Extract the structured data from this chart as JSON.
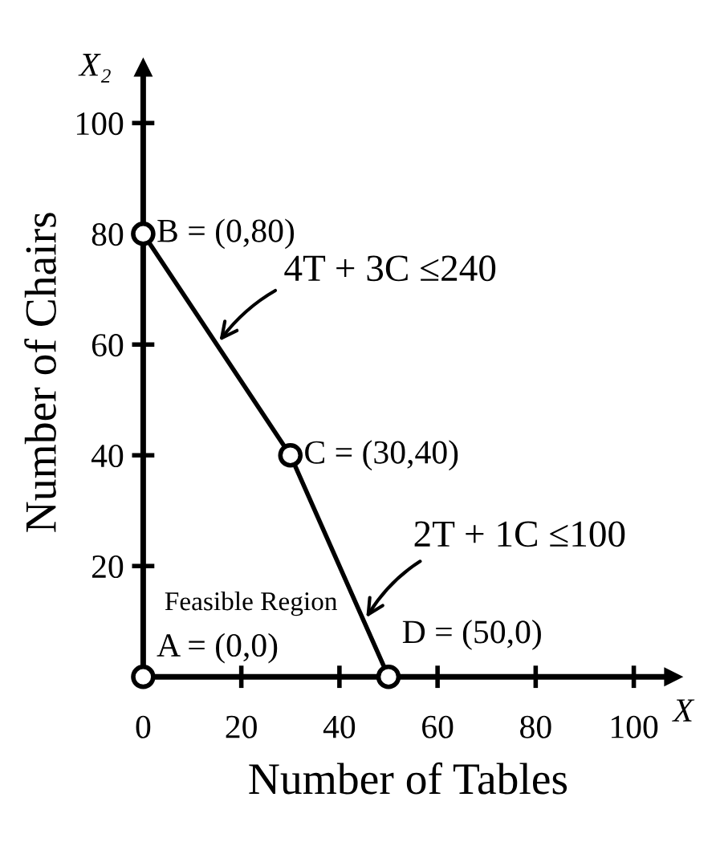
{
  "chart_data": {
    "type": "line",
    "xlabel": "Number of Tables",
    "ylabel": "Number of Chairs",
    "xlim": [
      0,
      108
    ],
    "ylim": [
      0,
      110
    ],
    "xticks": [
      0,
      20,
      40,
      60,
      80,
      100
    ],
    "yticks": [
      {
        "value": 0,
        "label": null
      },
      20,
      40,
      60,
      80,
      100
    ],
    "grid": false,
    "marker": "circle",
    "line_style": "solid",
    "series": [
      {
        "x": [
          0,
          30,
          50
        ],
        "values": [
          80,
          40,
          0
        ],
        "color": "#000000"
      },
      {
        "type": "scatter",
        "x": [
          0
        ],
        "values": [
          0
        ],
        "color": "#000000"
      }
    ],
    "annotations": [
      {
        "text": "B = (0,80)",
        "x": 0,
        "y": 80
      },
      {
        "text": "C = (30,40)",
        "x": 30,
        "y": 40
      },
      {
        "text": "D = (50,0)",
        "x": 50,
        "y": 0
      },
      {
        "text": "A = (0,0)",
        "x": 0,
        "y": 0
      },
      {
        "text": "4T + 3C ≤240",
        "x": 15,
        "y": 60
      },
      {
        "text": "2T + 1C ≤100",
        "x": 45,
        "y": 10
      },
      "Feasible Region",
      "X",
      "X₂"
    ]
  }
}
